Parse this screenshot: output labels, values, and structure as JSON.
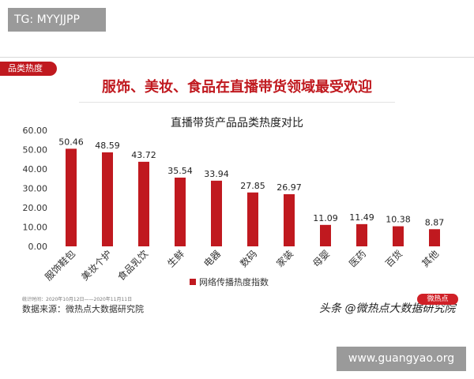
{
  "top_tag": "TG: MYYJJPP",
  "section_tab": "品类热度",
  "headline": "服饰、美妆、食品在直播带货领域最受欢迎",
  "footer": {
    "period": "统计时间：2020年10月12日——2020年11月11日",
    "source": "数据来源：微热点大数据研究院",
    "watermark": "头条 @微热点大数据研究院",
    "logo": "微热点"
  },
  "bottom_tag": "www.guangyao.org",
  "colors": {
    "bar": "#c0191f",
    "accent": "#c0191f"
  },
  "chart_data": {
    "type": "bar",
    "title": "直播带货产品品类热度对比",
    "categories": [
      "服饰鞋包",
      "美妆个护",
      "食品乳饮",
      "生鲜",
      "电器",
      "数码",
      "家装",
      "母婴",
      "医药",
      "百货",
      "其他"
    ],
    "series": [
      {
        "name": "网络传播热度指数",
        "values": [
          50.46,
          48.59,
          43.72,
          35.54,
          33.94,
          27.85,
          26.97,
          11.09,
          11.49,
          10.38,
          8.87
        ]
      }
    ],
    "value_labels": [
      "50.46",
      "48.59",
      "43.72",
      "35.54",
      "33.94",
      "27.85",
      "26.97",
      "11.09",
      "11.49",
      "10.38",
      "8.87"
    ],
    "y_ticks": [
      "0.00",
      "10.00",
      "20.00",
      "30.00",
      "40.00",
      "50.00",
      "60.00"
    ],
    "ylim": [
      0,
      60
    ],
    "xlabel": "",
    "ylabel": "",
    "grid": false,
    "legend": "bottom-center"
  }
}
